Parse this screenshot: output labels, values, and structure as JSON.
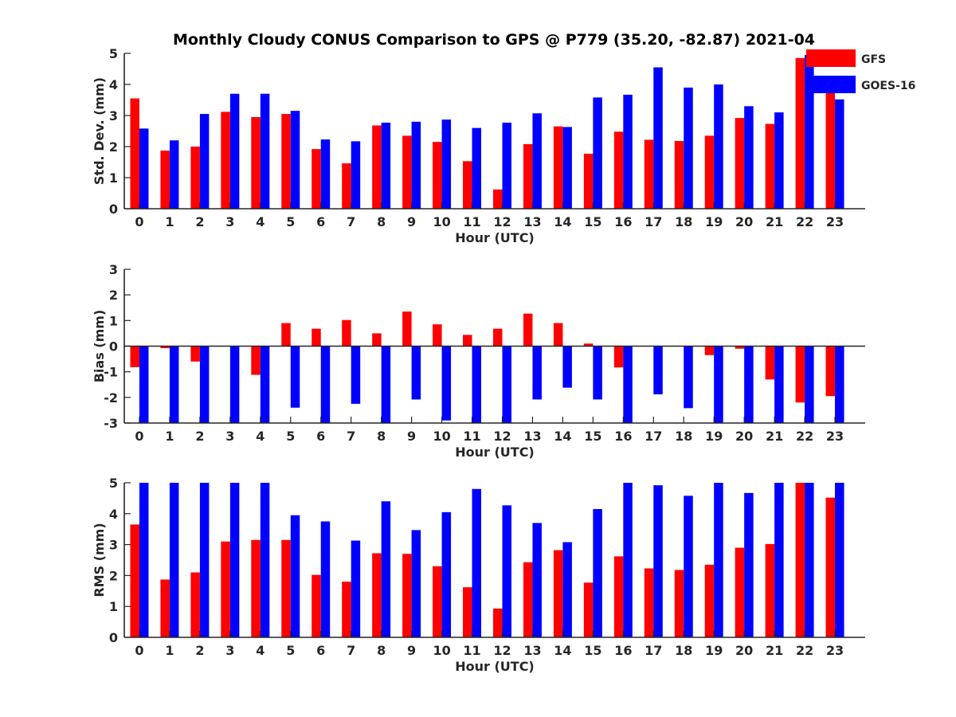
{
  "figure": {
    "title": "Monthly Cloudy CONUS Comparison to GPS @ P779 (35.20, -82.87) 2021-04"
  },
  "colors": {
    "GFS": "#ff0000",
    "GOES-16": "#0000ff"
  },
  "chart_data": [
    {
      "type": "bar",
      "xlabel": "Hour (UTC)",
      "ylabel": "Std. Dev. (mm)",
      "ylim": [
        0,
        5
      ],
      "yticks": [
        0,
        1,
        2,
        3,
        4,
        5
      ],
      "categories": [
        "0",
        "1",
        "2",
        "3",
        "4",
        "5",
        "6",
        "7",
        "8",
        "9",
        "10",
        "11",
        "12",
        "13",
        "14",
        "15",
        "16",
        "17",
        "18",
        "19",
        "20",
        "21",
        "22",
        "23"
      ],
      "legend": {
        "placement": "top-right",
        "entries": [
          "GFS",
          "GOES-16"
        ]
      },
      "series": [
        {
          "name": "GFS",
          "values": [
            3.55,
            1.87,
            2.0,
            3.12,
            2.95,
            3.05,
            1.92,
            1.46,
            2.68,
            2.35,
            2.15,
            1.53,
            0.62,
            2.08,
            2.65,
            1.77,
            2.48,
            2.22,
            2.18,
            2.35,
            2.92,
            2.73,
            4.85,
            3.75
          ]
        },
        {
          "name": "GOES-16",
          "values": [
            2.58,
            2.2,
            3.05,
            3.7,
            3.7,
            3.15,
            2.23,
            2.17,
            2.77,
            2.8,
            2.87,
            2.6,
            2.77,
            3.07,
            2.63,
            3.58,
            3.67,
            4.55,
            3.9,
            4.0,
            3.3,
            3.1,
            4.95,
            3.52
          ]
        }
      ]
    },
    {
      "type": "bar",
      "xlabel": "Hour (UTC)",
      "ylabel": "Bias (mm)",
      "ylim": [
        -3,
        3
      ],
      "yticks": [
        -3,
        -2,
        -1,
        0,
        1,
        2,
        3
      ],
      "zero_line": true,
      "categories": [
        "0",
        "1",
        "2",
        "3",
        "4",
        "5",
        "6",
        "7",
        "8",
        "9",
        "10",
        "11",
        "12",
        "13",
        "14",
        "15",
        "16",
        "17",
        "18",
        "19",
        "20",
        "21",
        "22",
        "23"
      ],
      "series": [
        {
          "name": "GFS",
          "values": [
            -0.82,
            -0.08,
            -0.6,
            0.0,
            -1.12,
            0.9,
            0.68,
            1.02,
            0.5,
            1.35,
            0.85,
            0.44,
            0.68,
            1.27,
            0.9,
            0.1,
            -0.83,
            0.0,
            0.0,
            -0.35,
            -0.1,
            -1.3,
            -2.2,
            -1.95
          ]
        },
        {
          "name": "GOES-16",
          "values": [
            -3.0,
            -3.0,
            -3.0,
            -3.0,
            -3.0,
            -2.4,
            -3.0,
            -2.25,
            -3.0,
            -2.08,
            -2.9,
            -3.0,
            -3.0,
            -2.08,
            -1.62,
            -2.08,
            -3.0,
            -1.88,
            -2.42,
            -3.0,
            -3.0,
            -3.0,
            -3.0,
            -3.0
          ]
        }
      ]
    },
    {
      "type": "bar",
      "xlabel": "Hour (UTC)",
      "ylabel": "RMS (mm)",
      "ylim": [
        0,
        5
      ],
      "yticks": [
        0,
        1,
        2,
        3,
        4,
        5
      ],
      "categories": [
        "0",
        "1",
        "2",
        "3",
        "4",
        "5",
        "6",
        "7",
        "8",
        "9",
        "10",
        "11",
        "12",
        "13",
        "14",
        "15",
        "16",
        "17",
        "18",
        "19",
        "20",
        "21",
        "22",
        "23"
      ],
      "series": [
        {
          "name": "GFS",
          "values": [
            3.65,
            1.87,
            2.1,
            3.1,
            3.15,
            3.15,
            2.02,
            1.8,
            2.72,
            2.7,
            2.3,
            1.62,
            0.93,
            2.43,
            2.82,
            1.77,
            2.62,
            2.23,
            2.18,
            2.35,
            2.9,
            3.02,
            5.0,
            4.52
          ]
        },
        {
          "name": "GOES-16",
          "values": [
            5.0,
            5.0,
            5.0,
            5.0,
            5.0,
            3.95,
            3.75,
            3.13,
            4.4,
            3.47,
            4.05,
            4.8,
            4.27,
            3.7,
            3.08,
            4.15,
            5.0,
            4.92,
            4.58,
            5.0,
            4.67,
            5.0,
            5.0,
            5.0
          ]
        }
      ]
    }
  ]
}
